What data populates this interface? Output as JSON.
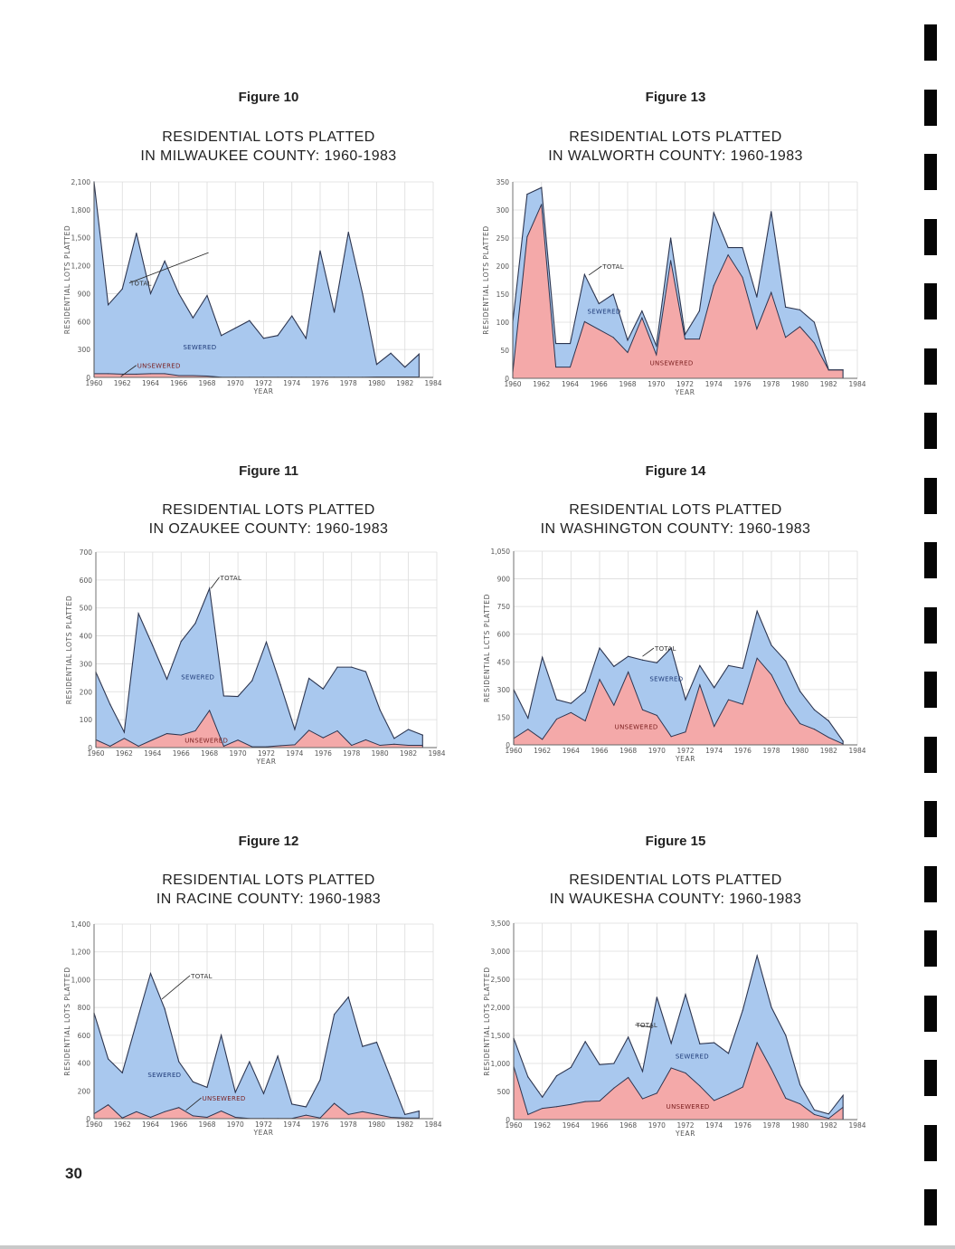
{
  "page": {
    "page_number": "30",
    "colors": {
      "sewered": "#a9c8ee",
      "unsewered": "#f4a9a9",
      "outline": "#2c3550",
      "grid": "#dcdcdc"
    }
  },
  "chart_data": [
    {
      "id": "fig10",
      "type": "area",
      "figure_label": "Figure 10",
      "title_line1": "RESIDENTIAL LOTS PLATTED",
      "title_line2": "IN MILWAUKEE COUNTY: 1960-1983",
      "xlabel": "YEAR",
      "ylabel": "RESIDENTIAL LOTS PLATTED",
      "xlim": [
        1960,
        1984
      ],
      "x_ticks": [
        "1960",
        "1962",
        "1964",
        "1966",
        "1968",
        "1970",
        "1972",
        "1974",
        "1976",
        "1978",
        "1980",
        "1982",
        "1984"
      ],
      "ylim": [
        0,
        2100
      ],
      "y_ticks": [
        "0",
        "300",
        "600",
        "900",
        "1,200",
        "1,500",
        "1,800",
        "2,100"
      ],
      "grid": true,
      "x": [
        1960,
        1961,
        1962,
        1963,
        1964,
        1965,
        1966,
        1967,
        1968,
        1969,
        1970,
        1971,
        1972,
        1973,
        1974,
        1975,
        1976,
        1977,
        1978,
        1979,
        1980,
        1981,
        1982,
        1983
      ],
      "series": [
        {
          "name": "TOTAL",
          "values": [
            2100,
            780,
            950,
            1550,
            900,
            1250,
            900,
            640,
            880,
            450,
            530,
            610,
            420,
            450,
            660,
            420,
            1360,
            700,
            1560,
            900,
            140,
            260,
            110,
            250
          ]
        },
        {
          "name": "UNSEWERED",
          "values": [
            40,
            40,
            35,
            35,
            40,
            40,
            20,
            20,
            15,
            2,
            2,
            2,
            2,
            2,
            2,
            2,
            2,
            2,
            2,
            2,
            5,
            5,
            5,
            5
          ]
        }
      ],
      "annotations": [
        "TOTAL",
        "SEWERED",
        "UNSEWERED"
      ]
    },
    {
      "id": "fig13",
      "type": "area",
      "figure_label": "Figure 13",
      "title_line1": "RESIDENTIAL LOTS PLATTED",
      "title_line2": "IN WALWORTH COUNTY: 1960-1983",
      "xlabel": "YEAR",
      "ylabel": "RESIDENTIAL LOTS PLATTED",
      "xlim": [
        1960,
        1984
      ],
      "x_ticks": [
        "1960",
        "1962",
        "1964",
        "1966",
        "1968",
        "1970",
        "1972",
        "1974",
        "1976",
        "1978",
        "1980",
        "1982",
        "1984"
      ],
      "ylim": [
        0,
        350
      ],
      "y_ticks": [
        "0",
        "50",
        "100",
        "150",
        "200",
        "250",
        "300",
        "350"
      ],
      "grid": true,
      "x": [
        1960,
        1961,
        1962,
        1963,
        1964,
        1965,
        1966,
        1967,
        1968,
        1969,
        1970,
        1971,
        1972,
        1973,
        1974,
        1975,
        1976,
        1977,
        1978,
        1979,
        1980,
        1981,
        1982,
        1983
      ],
      "series": [
        {
          "name": "TOTAL",
          "values": [
            100,
            328,
            340,
            62,
            62,
            185,
            133,
            150,
            68,
            120,
            58,
            250,
            78,
            120,
            295,
            233,
            233,
            145,
            297,
            127,
            122,
            100,
            15,
            15
          ]
        },
        {
          "name": "UNSEWERED",
          "values": [
            10,
            252,
            310,
            20,
            20,
            101,
            87,
            73,
            46,
            108,
            42,
            210,
            70,
            70,
            165,
            220,
            180,
            88,
            153,
            73,
            92,
            63,
            15,
            15
          ]
        }
      ],
      "annotations": [
        "TOTAL",
        "SEWERED",
        "UNSEWERED"
      ]
    },
    {
      "id": "fig11",
      "type": "area",
      "figure_label": "Figure 11",
      "title_line1": "RESIDENTIAL LOTS PLATTED",
      "title_line2": "IN OZAUKEE COUNTY: 1960-1983",
      "xlabel": "YEAR",
      "ylabel": "RESIDENTIAL LOTS PLATTED",
      "xlim": [
        1960,
        1984
      ],
      "x_ticks": [
        "1960",
        "1962",
        "1964",
        "1966",
        "1968",
        "1970",
        "1972",
        "1974",
        "1976",
        "1978",
        "1980",
        "1982",
        "1984"
      ],
      "ylim": [
        0,
        700
      ],
      "y_ticks": [
        "0",
        "100",
        "200",
        "300",
        "400",
        "500",
        "600",
        "700"
      ],
      "grid": true,
      "x": [
        1960,
        1961,
        1962,
        1963,
        1964,
        1965,
        1966,
        1967,
        1968,
        1969,
        1970,
        1971,
        1972,
        1973,
        1974,
        1975,
        1976,
        1977,
        1978,
        1979,
        1980,
        1981,
        1982,
        1983
      ],
      "series": [
        {
          "name": "TOTAL",
          "values": [
            270,
            155,
            55,
            480,
            365,
            245,
            380,
            445,
            570,
            185,
            183,
            240,
            378,
            225,
            65,
            248,
            210,
            288,
            288,
            272,
            135,
            33,
            65,
            45
          ]
        },
        {
          "name": "UNSEWERED",
          "values": [
            28,
            5,
            33,
            5,
            28,
            50,
            45,
            60,
            133,
            5,
            27,
            3,
            3,
            7,
            10,
            62,
            35,
            60,
            8,
            28,
            8,
            12,
            8,
            8
          ]
        }
      ],
      "annotations": [
        "TOTAL",
        "SEWERED",
        "UNSEWERED"
      ]
    },
    {
      "id": "fig14",
      "type": "area",
      "figure_label": "Figure 14",
      "title_line1": "RESIDENTIAL LOTS PLATTED",
      "title_line2": "IN WASHINGTON COUNTY: 1960-1983",
      "xlabel": "YEAR",
      "ylabel": "RESIDENTIAL LCTS PLATTED",
      "xlim": [
        1960,
        1984
      ],
      "x_ticks": [
        "1960",
        "1962",
        "1964",
        "1966",
        "1968",
        "1970",
        "1972",
        "1974",
        "1976",
        "1978",
        "1980",
        "1982",
        "1984"
      ],
      "ylim": [
        0,
        1050
      ],
      "y_ticks": [
        "0",
        "150",
        "300",
        "450",
        "600",
        "750",
        "900",
        "1,050"
      ],
      "grid": true,
      "x": [
        1960,
        1961,
        1962,
        1963,
        1964,
        1965,
        1966,
        1967,
        1968,
        1969,
        1970,
        1971,
        1972,
        1973,
        1974,
        1975,
        1976,
        1977,
        1978,
        1979,
        1980,
        1981,
        1982,
        1983
      ],
      "series": [
        {
          "name": "TOTAL",
          "values": [
            300,
            145,
            475,
            245,
            225,
            290,
            525,
            425,
            480,
            460,
            445,
            525,
            245,
            430,
            310,
            430,
            415,
            725,
            540,
            455,
            290,
            190,
            130,
            20
          ]
        },
        {
          "name": "UNSEWERED",
          "values": [
            35,
            85,
            30,
            140,
            175,
            130,
            355,
            215,
            395,
            190,
            160,
            45,
            70,
            325,
            100,
            245,
            220,
            470,
            380,
            225,
            115,
            85,
            40,
            5
          ]
        }
      ],
      "annotations": [
        "TOTAL",
        "SEWERED",
        "UNSEWERED"
      ]
    },
    {
      "id": "fig12",
      "type": "area",
      "figure_label": "Figure 12",
      "title_line1": "RESIDENTIAL LOTS PLATTED",
      "title_line2": "IN RACINE COUNTY: 1960-1983",
      "xlabel": "YEAR",
      "ylabel": "RESIDENTIAL LOTS PLATTED",
      "xlim": [
        1960,
        1984
      ],
      "x_ticks": [
        "1960",
        "1962",
        "1964",
        "1966",
        "1968",
        "1970",
        "1972",
        "1974",
        "1976",
        "1978",
        "1980",
        "1982",
        "1984"
      ],
      "ylim": [
        0,
        1400
      ],
      "y_ticks": [
        "0",
        "200",
        "400",
        "600",
        "800",
        "1,000",
        "1,200",
        "1,400"
      ],
      "grid": true,
      "x": [
        1960,
        1961,
        1962,
        1963,
        1964,
        1965,
        1966,
        1967,
        1968,
        1969,
        1970,
        1971,
        1972,
        1973,
        1974,
        1975,
        1976,
        1977,
        1978,
        1979,
        1980,
        1981,
        1982,
        1983
      ],
      "series": [
        {
          "name": "TOTAL",
          "values": [
            760,
            430,
            330,
            690,
            1045,
            790,
            410,
            265,
            225,
            600,
            190,
            410,
            180,
            450,
            105,
            85,
            280,
            750,
            875,
            520,
            550,
            290,
            30,
            55
          ]
        },
        {
          "name": "UNSEWERED",
          "values": [
            35,
            100,
            5,
            50,
            10,
            50,
            80,
            20,
            10,
            55,
            10,
            2,
            2,
            2,
            2,
            25,
            5,
            110,
            30,
            50,
            30,
            10,
            5,
            5
          ]
        }
      ],
      "annotations": [
        "TOTAL",
        "SEWERED",
        "UNSEWERED"
      ]
    },
    {
      "id": "fig15",
      "type": "area",
      "figure_label": "Figure 15",
      "title_line1": "RESIDENTIAL LOTS PLATTED",
      "title_line2": "IN WAUKESHA COUNTY: 1960-1983",
      "xlabel": "YEAR",
      "ylabel": "RESIDENTIAL LOTS PLATTED",
      "xlim": [
        1960,
        1984
      ],
      "x_ticks": [
        "1960",
        "1962",
        "1964",
        "1966",
        "1968",
        "1970",
        "1972",
        "1974",
        "1976",
        "1978",
        "1980",
        "1982",
        "1984"
      ],
      "ylim": [
        0,
        3500
      ],
      "y_ticks": [
        "0",
        "500",
        "1,000",
        "1,500",
        "2,000",
        "2,500",
        "3,000",
        "3,500"
      ],
      "grid": true,
      "x": [
        1960,
        1961,
        1962,
        1963,
        1964,
        1965,
        1966,
        1967,
        1968,
        1969,
        1970,
        1971,
        1972,
        1973,
        1974,
        1975,
        1976,
        1977,
        1978,
        1979,
        1980,
        1981,
        1982,
        1983
      ],
      "series": [
        {
          "name": "TOTAL",
          "values": [
            1450,
            760,
            400,
            780,
            930,
            1390,
            980,
            1000,
            1470,
            860,
            2180,
            1360,
            2230,
            1350,
            1370,
            1180,
            1950,
            2920,
            2000,
            1500,
            620,
            170,
            100,
            430
          ]
        },
        {
          "name": "UNSEWERED",
          "values": [
            950,
            90,
            200,
            230,
            270,
            320,
            330,
            560,
            750,
            370,
            470,
            920,
            830,
            600,
            340,
            450,
            580,
            1370,
            900,
            380,
            280,
            90,
            20,
            220
          ]
        }
      ],
      "annotations": [
        "TOTAL",
        "SEWERED",
        "UNSEWERED"
      ]
    }
  ]
}
